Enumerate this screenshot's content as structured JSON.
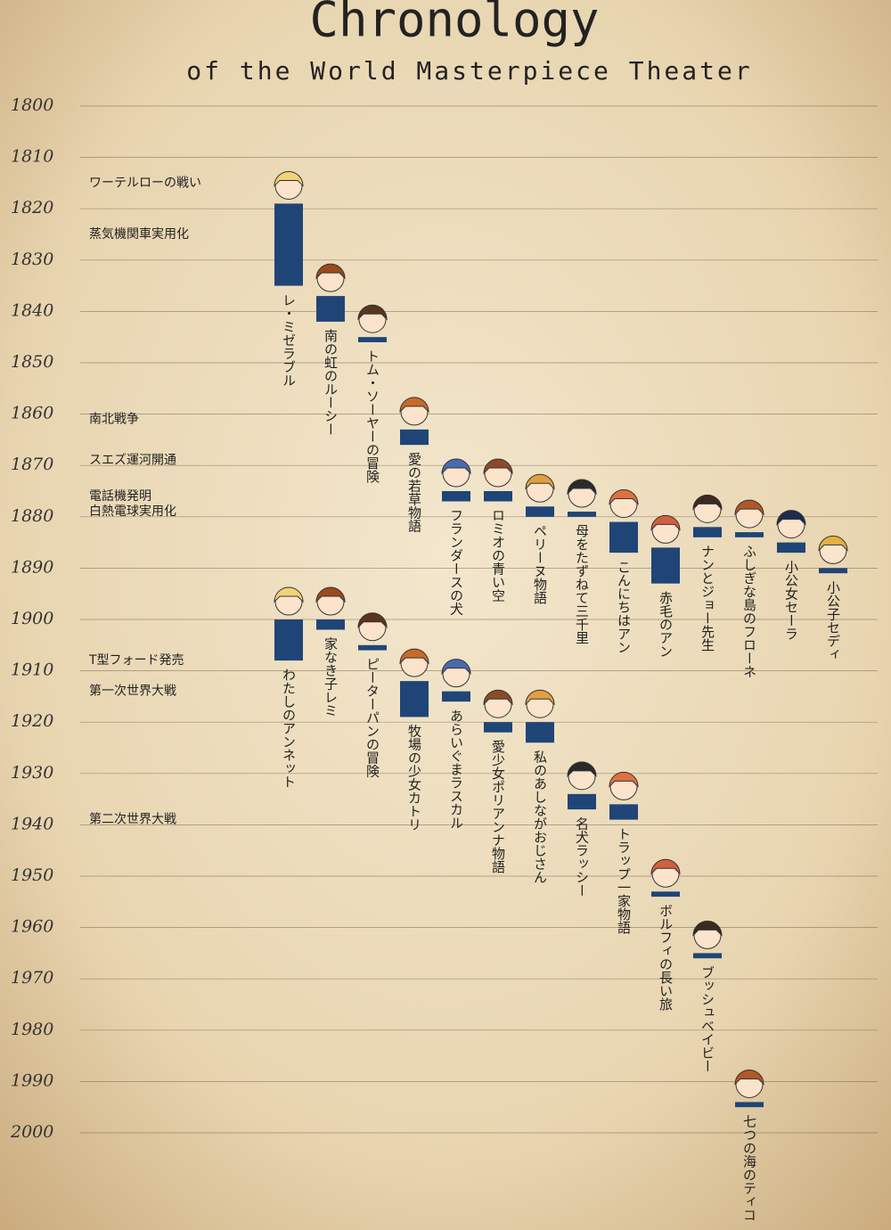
{
  "chart_data": {
    "type": "timeline",
    "title": "Chronology",
    "subtitle": "of the World Masterpiece Theater",
    "ylim": [
      1800,
      2000
    ],
    "yticks": [
      1800,
      1810,
      1820,
      1830,
      1840,
      1850,
      1860,
      1870,
      1880,
      1890,
      1900,
      1910,
      1920,
      1930,
      1940,
      1950,
      1960,
      1970,
      1980,
      1990,
      2000
    ],
    "grid": true,
    "color": "#1f4577",
    "events": [
      {
        "label": "ワーテルローの戦い",
        "year": 1815
      },
      {
        "label": "蒸気機関車実用化",
        "year": 1825
      },
      {
        "label": "南北戦争",
        "year": 1861
      },
      {
        "label": "スエズ運河開通",
        "year": 1869
      },
      {
        "label": "電話機発明",
        "year": 1876
      },
      {
        "label": "白熱電球実用化",
        "year": 1879
      },
      {
        "label": "T型フォード発売",
        "year": 1908
      },
      {
        "label": "第一次世界大戦",
        "year": 1914
      },
      {
        "label": "第二次世界大戦",
        "year": 1939
      }
    ],
    "groups": [
      [
        {
          "label": "レ・ミゼラブル",
          "start": 1819,
          "end": 1835
        },
        {
          "label": "南の虹のルーシー",
          "start": 1837,
          "end": 1842
        },
        {
          "label": "トム・ソーヤーの冒険",
          "start": 1845,
          "end": 1846
        },
        {
          "label": "愛の若草物語",
          "start": 1863,
          "end": 1866
        },
        {
          "label": "フランダースの犬",
          "start": 1875,
          "end": 1877
        },
        {
          "label": "ロミオの青い空",
          "start": 1875,
          "end": 1877
        },
        {
          "label": "ペリーヌ物語",
          "start": 1878,
          "end": 1880
        },
        {
          "label": "母をたずねて三千里",
          "start": 1879,
          "end": 1880
        },
        {
          "label": "こんにちはアン",
          "start": 1881,
          "end": 1887
        },
        {
          "label": "赤毛のアン",
          "start": 1886,
          "end": 1893
        },
        {
          "label": "ナンとジョー先生",
          "start": 1882,
          "end": 1884
        },
        {
          "label": "ふしぎな島のフローネ",
          "start": 1883,
          "end": 1884
        },
        {
          "label": "小公女セーラ",
          "start": 1885,
          "end": 1887
        },
        {
          "label": "小公子セディ",
          "start": 1890,
          "end": 1891
        }
      ],
      [
        {
          "label": "わたしのアンネット",
          "start": 1900,
          "end": 1908
        },
        {
          "label": "家なき子レミ",
          "start": 1900,
          "end": 1902
        },
        {
          "label": "ピーターパンの冒険",
          "start": 1905,
          "end": 1906
        },
        {
          "label": "牧場の少女カトリ",
          "start": 1912,
          "end": 1919
        },
        {
          "label": "あらいぐまラスカル",
          "start": 1914,
          "end": 1916
        },
        {
          "label": "愛少女ポリアンナ物語",
          "start": 1920,
          "end": 1922
        },
        {
          "label": "私のあしながおじさん",
          "start": 1920,
          "end": 1924
        },
        {
          "label": "名犬ラッシー",
          "start": 1934,
          "end": 1937
        },
        {
          "label": "トラップ一家物語",
          "start": 1936,
          "end": 1939
        },
        {
          "label": "ボルフィの長い旅",
          "start": 1953,
          "end": 1954
        },
        {
          "label": "ブッシュベイビー",
          "start": 1965,
          "end": 1966
        },
        {
          "label": "七つの海のティコ",
          "start": 1994,
          "end": 1995
        }
      ]
    ]
  }
}
